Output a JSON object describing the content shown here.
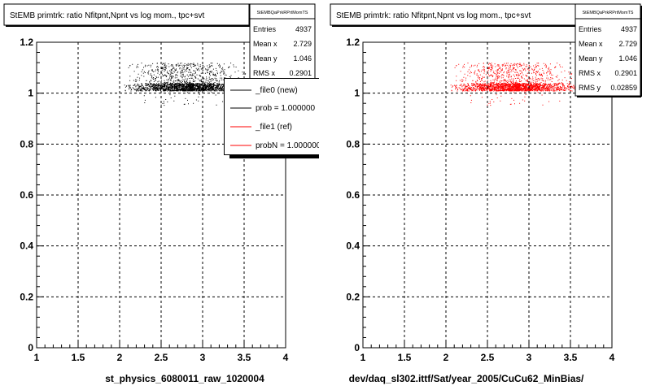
{
  "panels": [
    {
      "title": "StEMB primtrk: ratio Nfitpnt,Npnt vs log mom., tpc+svt",
      "bottom_label": "st_physics_6080011_raw_1020004",
      "stats": {
        "name": "StEMBQaPrkRPrtMomTS",
        "rows": [
          {
            "label": "Entries",
            "value": "4937"
          },
          {
            "label": "Mean x",
            "value": "2.729"
          },
          {
            "label": "Mean y",
            "value": "1.046"
          },
          {
            "label": "RMS x",
            "value": "0.2901"
          }
        ]
      },
      "legend": [
        {
          "label": "_file0 (new)",
          "color": "#000000"
        },
        {
          "label": "prob = 1.000000",
          "color": "#000000"
        },
        {
          "label": "_file1 (ref)",
          "color": "#ff0000"
        },
        {
          "label": "probN = 1.000000",
          "color": "#ff0000"
        }
      ]
    },
    {
      "title": "StEMB primtrk: ratio Nfitpnt,Npnt vs log mom., tpc+svt",
      "bottom_label": "dev/daq_sl302.ittf/Sat/year_2005/CuCu62_MinBias/",
      "stats": {
        "name": "StEMBQaPrkRPrtMomTS",
        "rows": [
          {
            "label": "Entries",
            "value": "4937"
          },
          {
            "label": "Mean x",
            "value": "2.729"
          },
          {
            "label": "Mean y",
            "value": "1.046"
          },
          {
            "label": "RMS x",
            "value": "0.2901"
          },
          {
            "label": "RMS y",
            "value": "0.02859"
          }
        ]
      }
    }
  ],
  "chart_data": [
    {
      "type": "scatter",
      "title": "StEMB primtrk: ratio Nfitpnt,Npnt vs log mom., tpc+svt",
      "xlabel": "st_physics_6080011_raw_1020004",
      "ylabel": "",
      "xlim": [
        1,
        4
      ],
      "ylim": [
        0,
        1.2
      ],
      "xticks": [
        "1",
        "1.5",
        "2",
        "2.5",
        "3",
        "3.5",
        "4"
      ],
      "yticks": [
        "0",
        "0.2",
        "0.4",
        "0.6",
        "0.8",
        "1",
        "1.2"
      ],
      "grid": true,
      "point_color": "#000000",
      "point_cloud": {
        "x_range": [
          2.05,
          3.6
        ],
        "y_core": [
          1.01,
          1.04
        ],
        "y_spread": [
          0.95,
          1.12
        ],
        "entries": 4937
      }
    },
    {
      "type": "scatter",
      "title": "StEMB primtrk: ratio Nfitpnt,Npnt vs log mom., tpc+svt",
      "xlabel": "dev/daq_sl302.ittf/Sat/year_2005/CuCu62_MinBias/",
      "ylabel": "",
      "xlim": [
        1,
        4
      ],
      "ylim": [
        0,
        1.2
      ],
      "xticks": [
        "1",
        "1.5",
        "2",
        "2.5",
        "3",
        "3.5",
        "4"
      ],
      "yticks": [
        "0",
        "0.2",
        "0.4",
        "0.6",
        "0.8",
        "1",
        "1.2"
      ],
      "grid": true,
      "point_color": "#ff0000",
      "point_cloud": {
        "x_range": [
          2.05,
          3.6
        ],
        "y_core": [
          1.01,
          1.04
        ],
        "y_spread": [
          0.95,
          1.12
        ],
        "entries": 4937
      }
    }
  ]
}
